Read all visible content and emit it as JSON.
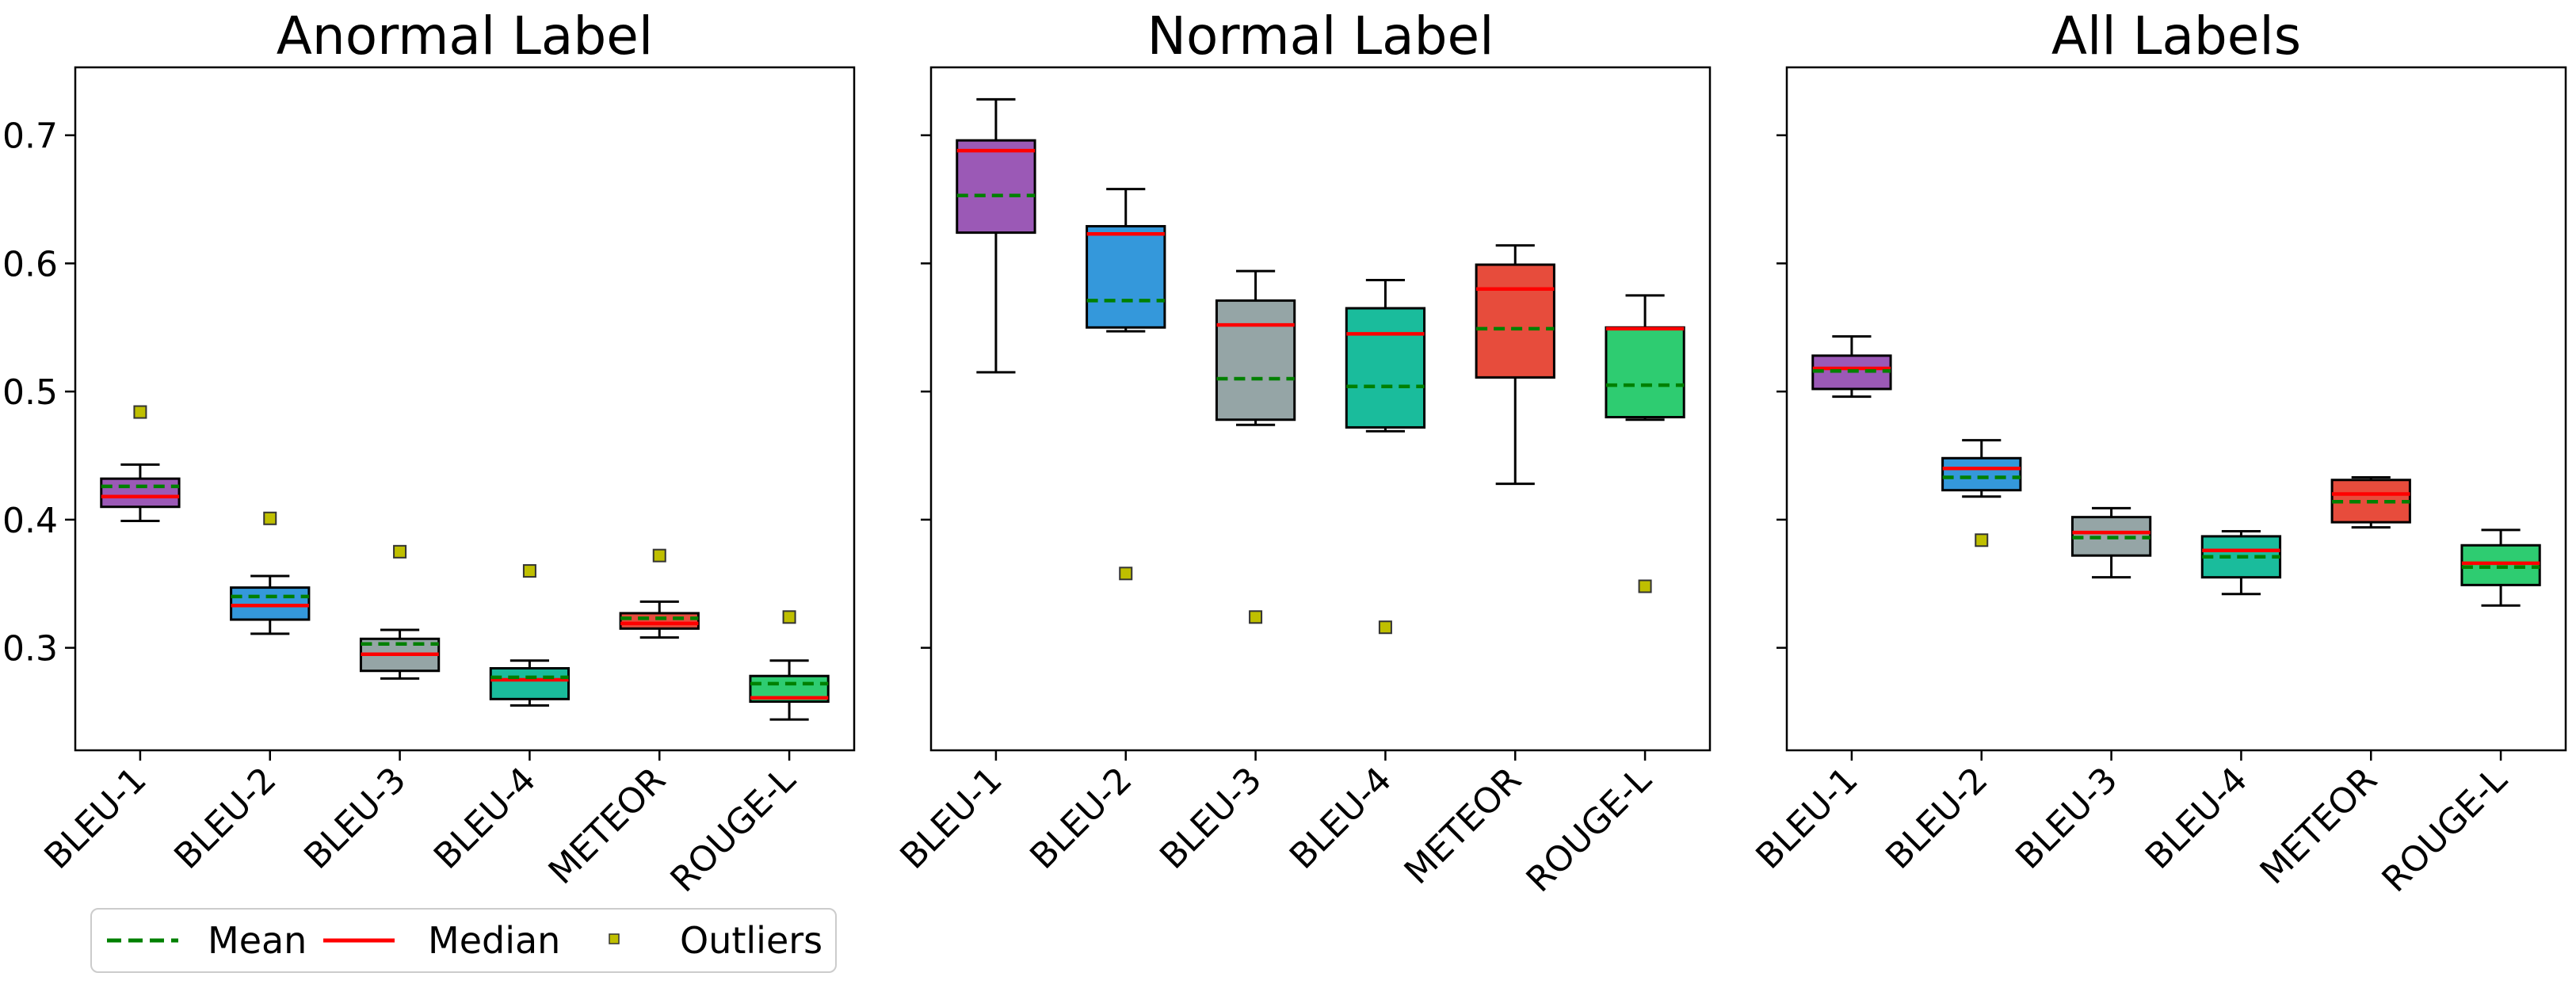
{
  "chart_data": [
    {
      "type": "box",
      "title": "Anormal Label",
      "categories": [
        "BLEU-1",
        "BLEU-2",
        "BLEU-3",
        "BLEU-4",
        "METEOR",
        "ROUGE-L"
      ],
      "colors": [
        "#9b59b6",
        "#3498db",
        "#95a5a6",
        "#1abc9c",
        "#e74c3c",
        "#2ecc71"
      ],
      "boxes": [
        {
          "whislo": 0.399,
          "q1": 0.41,
          "med": 0.418,
          "mean": 0.426,
          "q3": 0.432,
          "whishi": 0.443,
          "fliers": [
            0.484
          ]
        },
        {
          "whislo": 0.311,
          "q1": 0.322,
          "med": 0.333,
          "mean": 0.34,
          "q3": 0.347,
          "whishi": 0.356,
          "fliers": [
            0.401
          ]
        },
        {
          "whislo": 0.276,
          "q1": 0.282,
          "med": 0.295,
          "mean": 0.303,
          "q3": 0.307,
          "whishi": 0.314,
          "fliers": [
            0.375
          ]
        },
        {
          "whislo": 0.255,
          "q1": 0.26,
          "med": 0.275,
          "mean": 0.277,
          "q3": 0.284,
          "whishi": 0.29,
          "fliers": [
            0.36
          ]
        },
        {
          "whislo": 0.308,
          "q1": 0.315,
          "med": 0.319,
          "mean": 0.323,
          "q3": 0.327,
          "whishi": 0.336,
          "fliers": [
            0.372
          ]
        },
        {
          "whislo": 0.244,
          "q1": 0.258,
          "med": 0.261,
          "mean": 0.272,
          "q3": 0.278,
          "whishi": 0.29,
          "fliers": [
            0.324
          ]
        }
      ],
      "ylim": [
        0.22,
        0.753
      ],
      "yticks": [
        "0.3",
        "0.4",
        "0.5",
        "0.6",
        "0.7"
      ]
    },
    {
      "type": "box",
      "title": "Normal Label",
      "categories": [
        "BLEU-1",
        "BLEU-2",
        "BLEU-3",
        "BLEU-4",
        "METEOR",
        "ROUGE-L"
      ],
      "colors": [
        "#9b59b6",
        "#3498db",
        "#95a5a6",
        "#1abc9c",
        "#e74c3c",
        "#2ecc71"
      ],
      "boxes": [
        {
          "whislo": 0.515,
          "q1": 0.624,
          "med": 0.688,
          "mean": 0.653,
          "q3": 0.696,
          "whishi": 0.728,
          "fliers": []
        },
        {
          "whislo": 0.547,
          "q1": 0.55,
          "med": 0.623,
          "mean": 0.571,
          "q3": 0.629,
          "whishi": 0.658,
          "fliers": [
            0.358
          ]
        },
        {
          "whislo": 0.474,
          "q1": 0.478,
          "med": 0.552,
          "mean": 0.51,
          "q3": 0.571,
          "whishi": 0.594,
          "fliers": [
            0.324
          ]
        },
        {
          "whislo": 0.469,
          "q1": 0.472,
          "med": 0.545,
          "mean": 0.504,
          "q3": 0.565,
          "whishi": 0.587,
          "fliers": [
            0.316
          ]
        },
        {
          "whislo": 0.428,
          "q1": 0.511,
          "med": 0.58,
          "mean": 0.549,
          "q3": 0.599,
          "whishi": 0.614,
          "fliers": []
        },
        {
          "whislo": 0.478,
          "q1": 0.48,
          "med": 0.549,
          "mean": 0.505,
          "q3": 0.55,
          "whishi": 0.575,
          "fliers": [
            0.348
          ]
        }
      ],
      "ylim": [
        0.22,
        0.753
      ],
      "yticks": [
        "0.3",
        "0.4",
        "0.5",
        "0.6",
        "0.7"
      ]
    },
    {
      "type": "box",
      "title": "All Labels",
      "categories": [
        "BLEU-1",
        "BLEU-2",
        "BLEU-3",
        "BLEU-4",
        "METEOR",
        "ROUGE-L"
      ],
      "colors": [
        "#9b59b6",
        "#3498db",
        "#95a5a6",
        "#1abc9c",
        "#e74c3c",
        "#2ecc71"
      ],
      "boxes": [
        {
          "whislo": 0.496,
          "q1": 0.502,
          "med": 0.518,
          "mean": 0.516,
          "q3": 0.528,
          "whishi": 0.543,
          "fliers": []
        },
        {
          "whislo": 0.418,
          "q1": 0.423,
          "med": 0.44,
          "mean": 0.433,
          "q3": 0.448,
          "whishi": 0.462,
          "fliers": [
            0.384
          ]
        },
        {
          "whislo": 0.355,
          "q1": 0.372,
          "med": 0.39,
          "mean": 0.386,
          "q3": 0.402,
          "whishi": 0.409,
          "fliers": []
        },
        {
          "whislo": 0.342,
          "q1": 0.355,
          "med": 0.376,
          "mean": 0.371,
          "q3": 0.387,
          "whishi": 0.391,
          "fliers": []
        },
        {
          "whislo": 0.394,
          "q1": 0.398,
          "med": 0.42,
          "mean": 0.414,
          "q3": 0.431,
          "whishi": 0.433,
          "fliers": []
        },
        {
          "whislo": 0.333,
          "q1": 0.349,
          "med": 0.366,
          "mean": 0.363,
          "q3": 0.38,
          "whishi": 0.392,
          "fliers": []
        }
      ],
      "ylim": [
        0.22,
        0.753
      ],
      "yticks": [
        "0.3",
        "0.4",
        "0.5",
        "0.6",
        "0.7"
      ]
    }
  ],
  "legend": {
    "mean_label": "Mean",
    "median_label": "Median",
    "outliers_label": "Outliers",
    "mean_color": "#008000",
    "median_color": "#ff0000",
    "outlier_color": "#bfbf00"
  }
}
